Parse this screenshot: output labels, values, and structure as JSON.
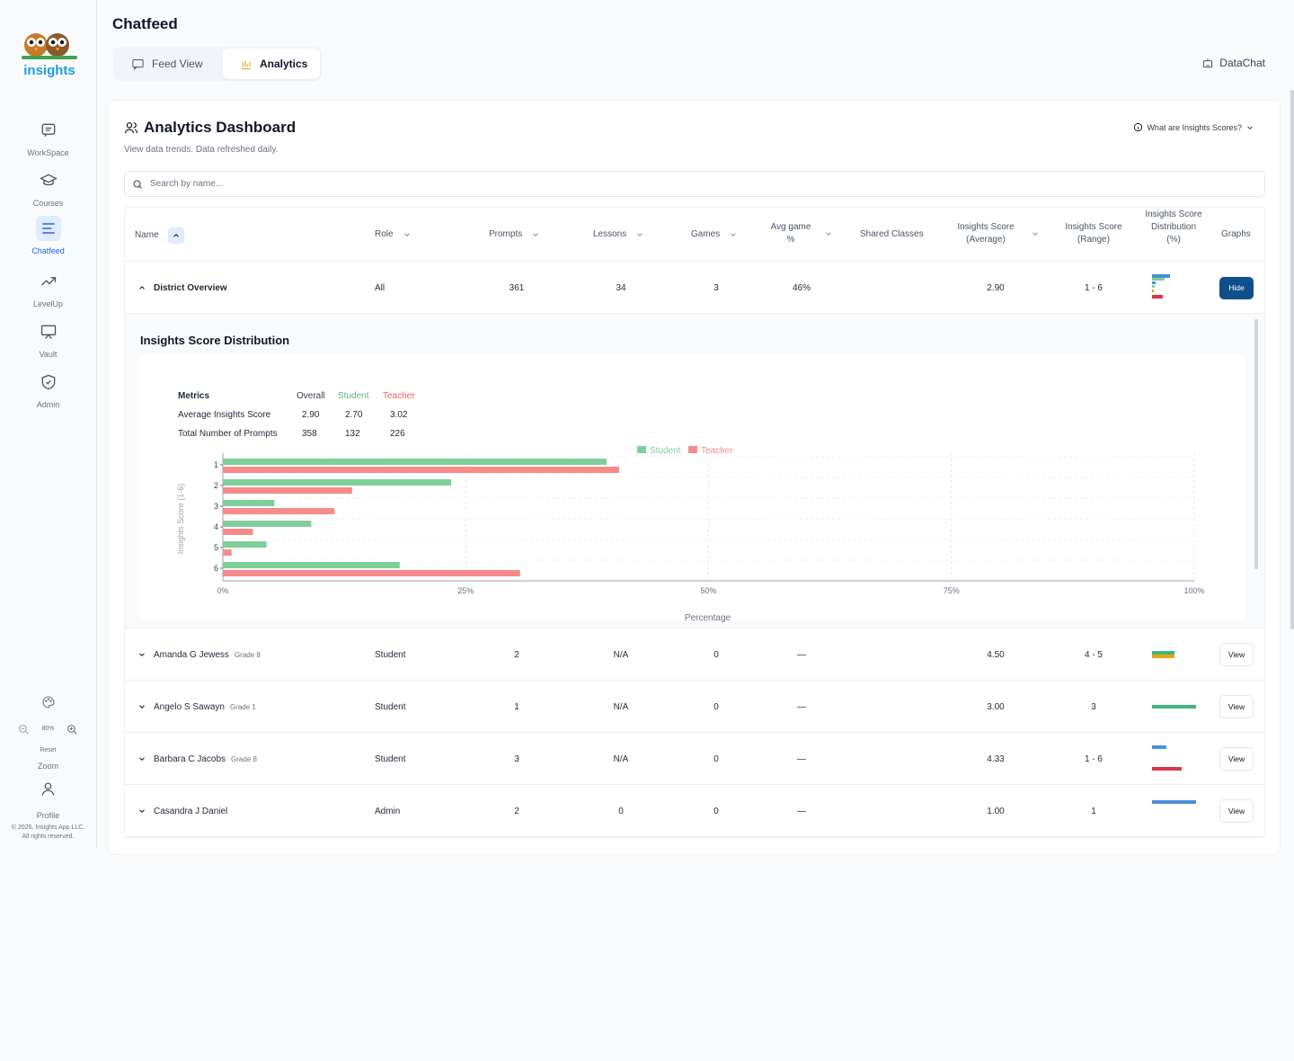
{
  "sidebar": {
    "logo_text": "insights",
    "items": [
      {
        "label": "WorkSpace",
        "icon": "chat-square-icon"
      },
      {
        "label": "Courses",
        "icon": "graduation-cap-icon"
      },
      {
        "label": "Chatfeed",
        "icon": "list-lines-icon"
      },
      {
        "label": "LevelUp",
        "icon": "trending-up-icon"
      },
      {
        "label": "Vault",
        "icon": "presentation-icon"
      },
      {
        "label": "Admin",
        "icon": "shield-icon"
      }
    ],
    "zoom_level": "80%",
    "reset_label": "Reset",
    "zoom_label": "Zoom",
    "profile_label": "Profile",
    "copyright_line1": "© 2026, Insights App LLC.",
    "copyright_line2": "All rights reserved."
  },
  "header": {
    "title": "Chatfeed",
    "tabs": [
      {
        "label": "Feed View",
        "active": false
      },
      {
        "label": "Analytics",
        "active": true
      }
    ],
    "datachat_label": "DataChat"
  },
  "dashboard": {
    "title": "Analytics Dashboard",
    "subtitle": "View data trends. Data refreshed daily.",
    "info_label": "What are Insights Scores?",
    "search_placeholder": "Search by name..."
  },
  "table": {
    "columns": [
      "Name",
      "Role",
      "Prompts",
      "Lessons",
      "Games",
      "Avg game %",
      "Shared Classes",
      "Insights Score (Average)",
      "Insights Score (Range)",
      "Insights Score Distribution (%)",
      "Graphs"
    ],
    "overview": {
      "name": "District Overview",
      "role": "All",
      "prompts": "361",
      "lessons": "34",
      "games": "3",
      "avg_game": "46%",
      "score_avg": "2.90",
      "score_range": "1 - 6",
      "button": "Hide"
    },
    "rows": [
      {
        "name": "Amanda G Jewess",
        "grade": "Grade 8",
        "role": "Student",
        "prompts": "2",
        "lessons": "N/A",
        "games": "0",
        "avg_game": "—",
        "score_avg": "4.50",
        "score_range": "4 - 5",
        "button": "View"
      },
      {
        "name": "Angelo S Sawayn",
        "grade": "Grade 1",
        "role": "Student",
        "prompts": "1",
        "lessons": "N/A",
        "games": "0",
        "avg_game": "—",
        "score_avg": "3.00",
        "score_range": "3",
        "button": "View"
      },
      {
        "name": "Barbara C Jacobs",
        "grade": "Grade 8",
        "role": "Student",
        "prompts": "3",
        "lessons": "N/A",
        "games": "0",
        "avg_game": "—",
        "score_avg": "4.33",
        "score_range": "1 - 6",
        "button": "View"
      },
      {
        "name": "Casandra J Daniel",
        "grade": "",
        "role": "Admin",
        "prompts": "2",
        "lessons": "0",
        "games": "0",
        "avg_game": "—",
        "score_avg": "1.00",
        "score_range": "1",
        "button": "View"
      }
    ]
  },
  "distribution": {
    "title": "Insights Score Distribution",
    "metrics_header": [
      "Metrics",
      "Overall",
      "Student",
      "Teacher"
    ],
    "metrics_rows": [
      [
        "Average Insights Score",
        "2.90",
        "2.70",
        "3.02"
      ],
      [
        "Total Number of Prompts",
        "358",
        "132",
        "226"
      ]
    ]
  },
  "colors": {
    "student": "#7fcf9a",
    "teacher": "#f78a8a",
    "accent": "#2563eb",
    "hide_button": "#0f4f8a"
  },
  "chart_data": {
    "type": "bar",
    "orientation": "horizontal",
    "categories": [
      "1",
      "2",
      "3",
      "4",
      "5",
      "6"
    ],
    "series": [
      {
        "name": "Student",
        "values": [
          39.5,
          23.5,
          5.3,
          9.1,
          4.5,
          18.2
        ]
      },
      {
        "name": "Teacher",
        "values": [
          40.8,
          13.3,
          11.5,
          3.1,
          0.9,
          30.6
        ]
      }
    ],
    "xlabel": "Percentage",
    "ylabel": "Insights Score (1-6)",
    "xticks": [
      "0%",
      "25%",
      "50%",
      "75%",
      "100%"
    ],
    "xlim": [
      0,
      100
    ],
    "legend": "top-center",
    "grid": true
  }
}
